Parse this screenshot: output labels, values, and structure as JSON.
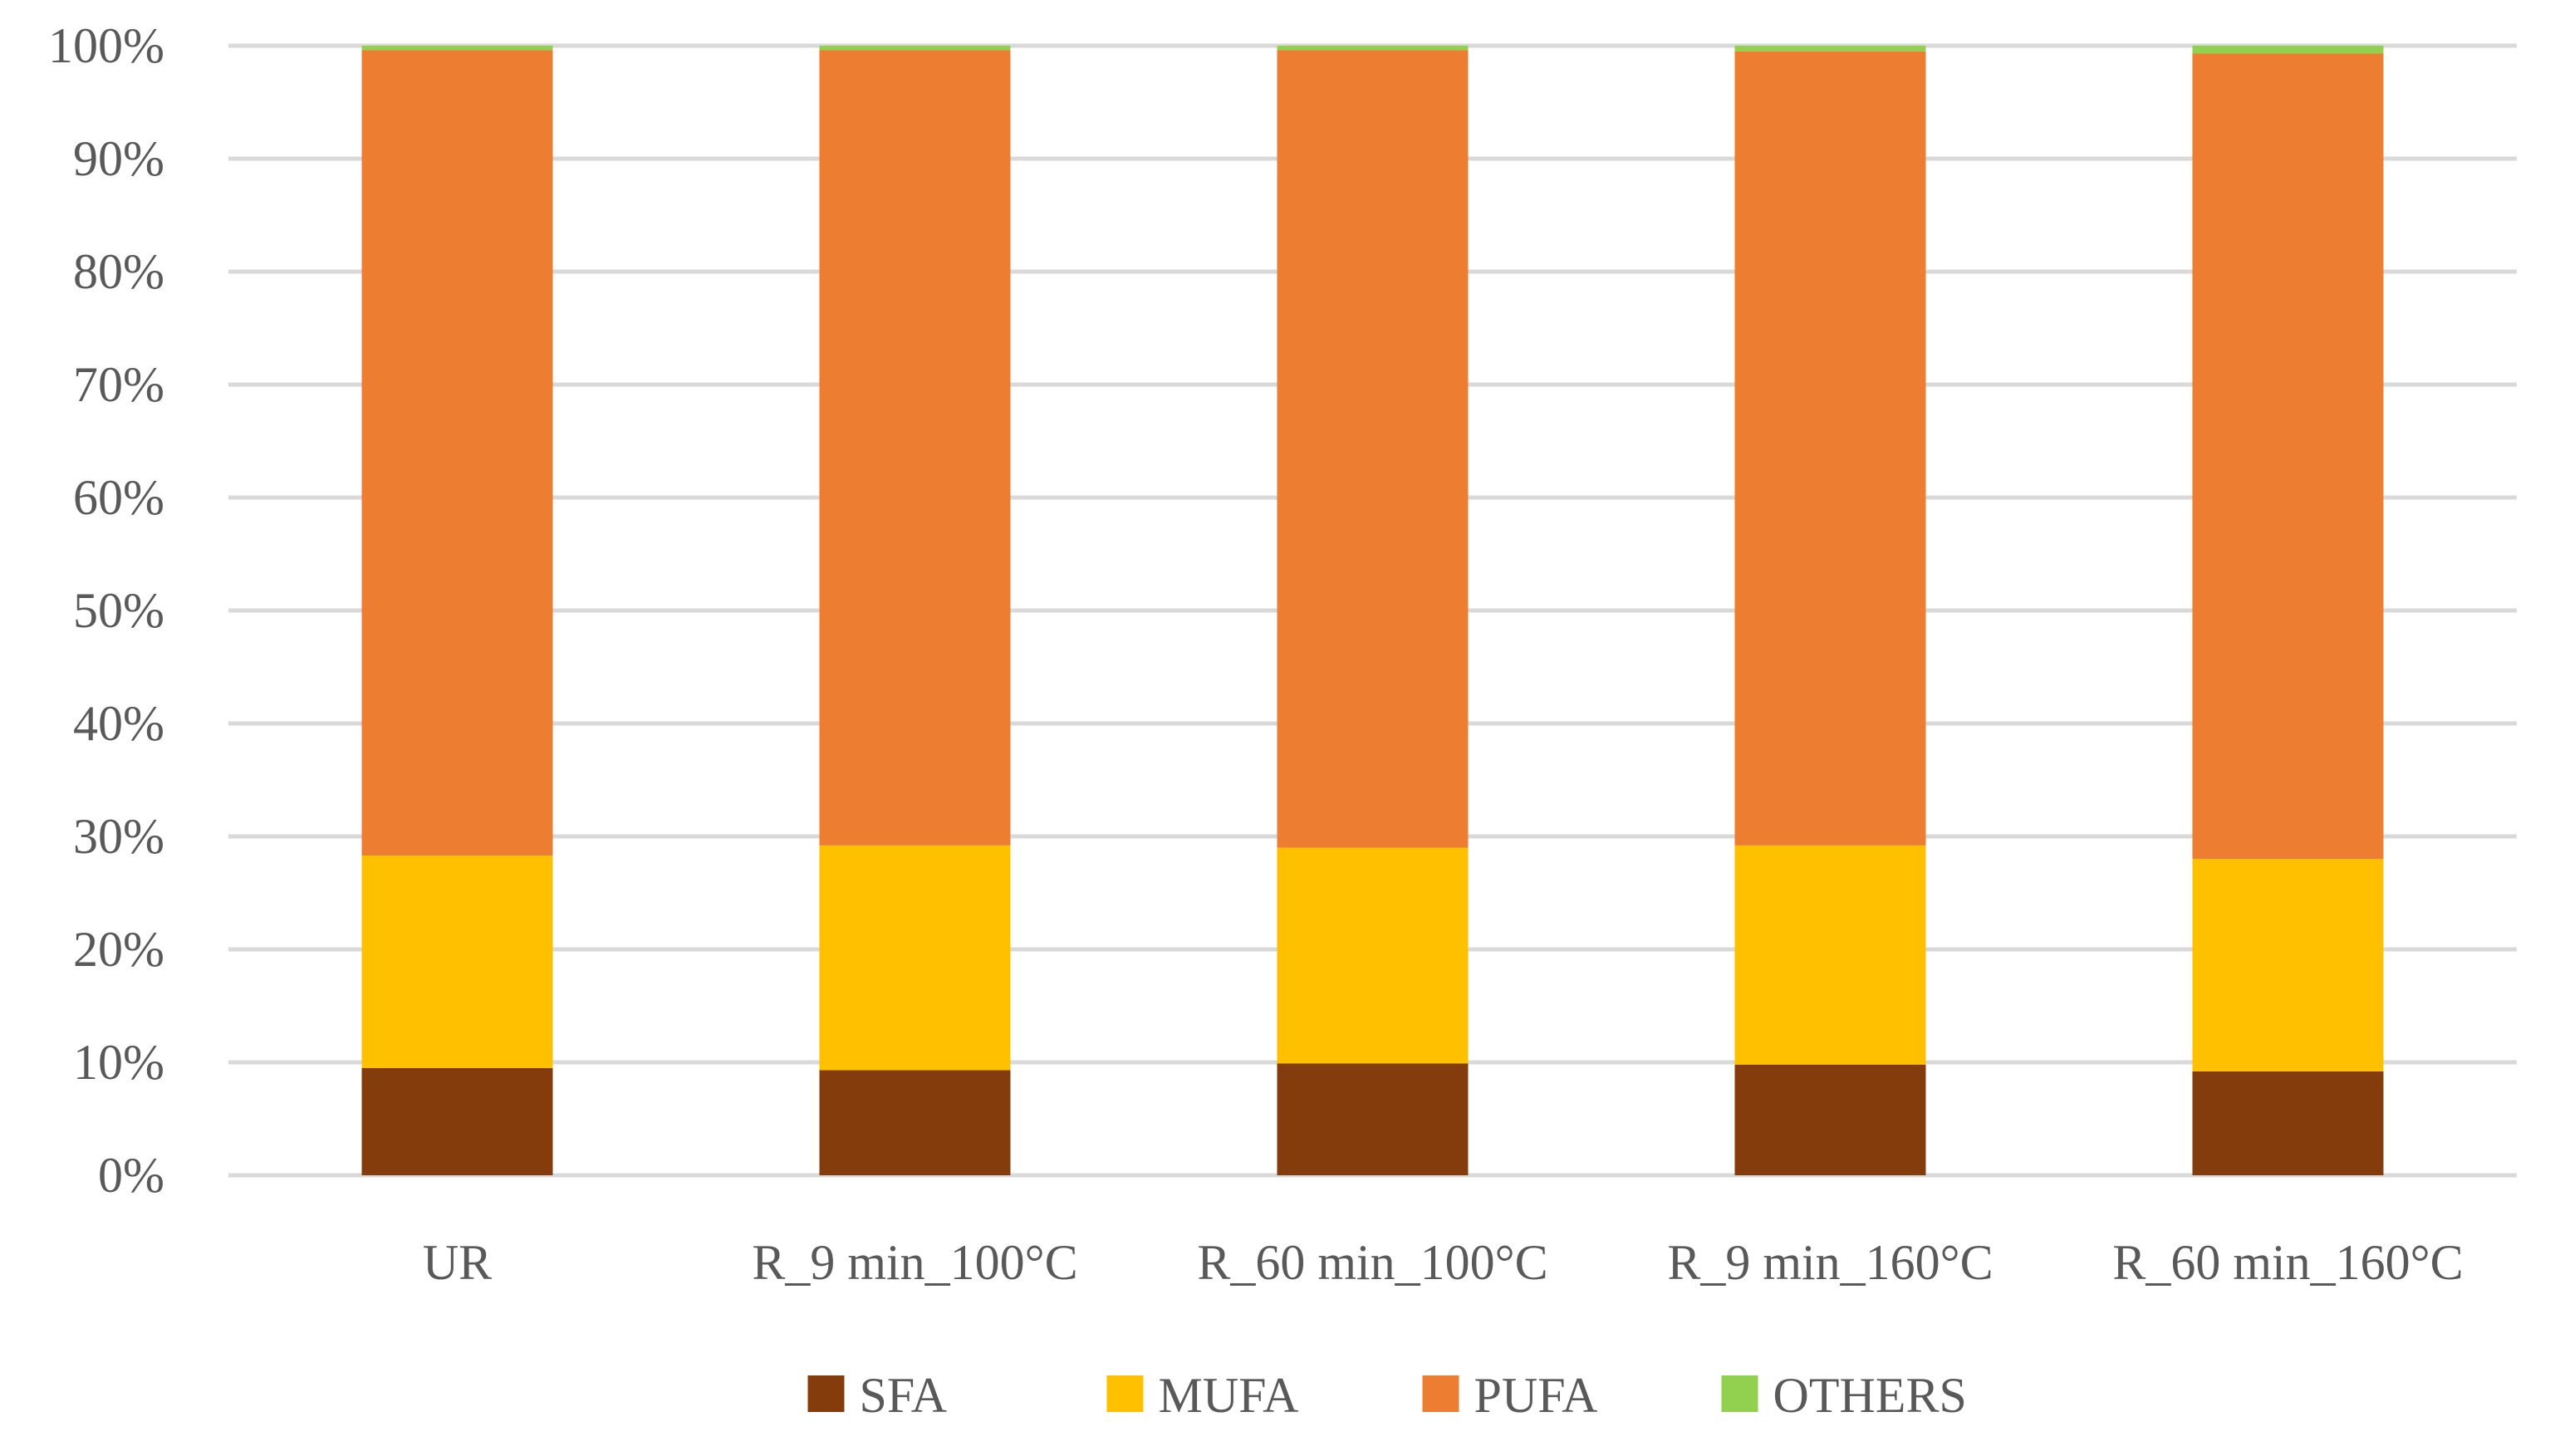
{
  "chart_data": {
    "type": "bar",
    "stacked": true,
    "percent_axis": true,
    "title": "",
    "xlabel": "",
    "ylabel": "",
    "ylim": [
      0,
      100
    ],
    "y_ticks": [
      "0%",
      "10%",
      "20%",
      "30%",
      "40%",
      "50%",
      "60%",
      "70%",
      "80%",
      "90%",
      "100%"
    ],
    "grid": true,
    "legend_position": "bottom",
    "categories": [
      "UR",
      "R_9 min_100°C",
      "R_60 min_100°C",
      "R_9 min_160°C",
      "R_60 min_160°C"
    ],
    "series": [
      {
        "name": "SFA",
        "color": "#843c0c",
        "values": [
          9.5,
          9.3,
          9.9,
          9.8,
          9.2
        ]
      },
      {
        "name": "MUFA",
        "color": "#ffc000",
        "values": [
          18.8,
          19.9,
          19.1,
          19.4,
          18.8
        ]
      },
      {
        "name": "PUFA",
        "color": "#ed7d31",
        "values": [
          71.3,
          70.4,
          70.6,
          70.3,
          71.3
        ]
      },
      {
        "name": "OTHERS",
        "color": "#92d050",
        "values": [
          0.4,
          0.4,
          0.4,
          0.5,
          0.7
        ]
      }
    ]
  }
}
